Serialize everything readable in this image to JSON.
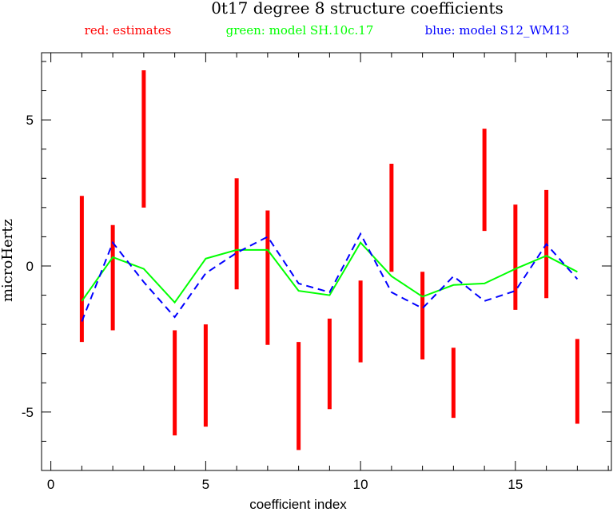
{
  "chart_data": {
    "type": "line",
    "title": "0t17 degree 8 structure coefficients",
    "legend": {
      "placement": "top",
      "entries": [
        {
          "label": "red: estimates",
          "color": "#ff0000"
        },
        {
          "label": "green: model SH.10c.17",
          "color": "#00ff00"
        },
        {
          "label": "blue: model S12_WM13",
          "color": "#0000ff"
        }
      ]
    },
    "xlabel": "coefficient index",
    "ylabel": "microHertz",
    "xlim": [
      -0.3,
      18.1
    ],
    "ylim": [
      -7.0,
      7.3
    ],
    "x_ticks": [
      {
        "value": 0,
        "label": "0"
      },
      {
        "value": 5,
        "label": "5"
      },
      {
        "value": 10,
        "label": "10"
      },
      {
        "value": 15,
        "label": "15"
      }
    ],
    "y_ticks": [
      {
        "value": 5,
        "label": "5"
      },
      {
        "value": 0,
        "label": "0"
      },
      {
        "value": -5,
        "label": "-5"
      }
    ],
    "grid": false,
    "x": [
      1,
      2,
      3,
      4,
      5,
      6,
      7,
      8,
      9,
      10,
      11,
      12,
      13,
      14,
      15,
      16,
      17
    ],
    "series": [
      {
        "name": "estimates",
        "style": "errorbar",
        "color": "#ff0000",
        "low": [
          -2.6,
          -2.2,
          2.0,
          -5.8,
          -5.5,
          -0.8,
          -2.7,
          -6.3,
          -4.9,
          -3.3,
          -0.2,
          -3.2,
          -5.2,
          1.2,
          -1.5,
          -1.1,
          -5.4
        ],
        "high": [
          2.4,
          1.4,
          6.7,
          -2.2,
          -2.0,
          3.0,
          1.9,
          -2.6,
          -1.8,
          -0.5,
          3.5,
          -0.2,
          -2.8,
          4.7,
          2.1,
          2.6,
          -2.5
        ]
      },
      {
        "name": "SH.10c.17",
        "style": "solid",
        "color": "#00ff00",
        "values": [
          -1.2,
          0.3,
          -0.1,
          -1.25,
          0.25,
          0.55,
          0.55,
          -0.85,
          -1.0,
          0.8,
          -0.35,
          -1.05,
          -0.65,
          -0.6,
          -0.1,
          0.35,
          -0.2
        ]
      },
      {
        "name": "S12_WM13",
        "style": "dashed",
        "color": "#0000ff",
        "values": [
          -1.9,
          0.8,
          -0.55,
          -1.75,
          -0.25,
          0.45,
          1.0,
          -0.6,
          -0.9,
          1.1,
          -0.9,
          -1.45,
          -0.35,
          -1.2,
          -0.85,
          0.75,
          -0.45
        ]
      }
    ]
  }
}
